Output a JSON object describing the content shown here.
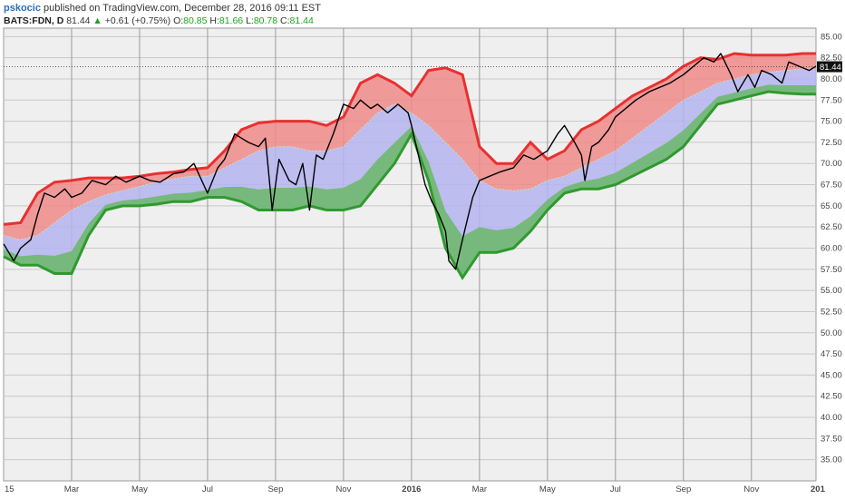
{
  "header": {
    "author": "pskocic",
    "published": "published on TradingView.com, December 28, 2016 09:11 EST",
    "symbol": "BATS:FDN, D",
    "last": "81.44",
    "change": "+0.61 (+0.75%)",
    "o_label": "O:",
    "o_val": "80.85",
    "h_label": "H:",
    "h_val": "81.66",
    "l_label": "L:",
    "l_val": "80.78",
    "c_label": "C:",
    "c_val": "81.44"
  },
  "price_tag": "81.44",
  "colors": {
    "upper_band": "#e83030",
    "upper_fill": "#f08a8a",
    "mid_fill": "#b4b4f0",
    "lower_fill": "#6fb86f",
    "lower_band": "#2e9a2e",
    "price": "#000000",
    "background": "#efefef",
    "grid": "#c8c8c8",
    "up_arrow": "#1aa51a"
  },
  "chart_data": {
    "type": "line",
    "title": "",
    "xlabel": "",
    "ylabel": "",
    "ylim": [
      32.5,
      86.0
    ],
    "y_ticks": [
      "85.00",
      "82.50",
      "80.00",
      "77.50",
      "75.00",
      "72.50",
      "70.00",
      "67.50",
      "65.00",
      "62.50",
      "60.00",
      "57.50",
      "55.00",
      "52.50",
      "50.00",
      "47.50",
      "45.00",
      "42.50",
      "40.00",
      "37.50",
      "35.00"
    ],
    "x_ticks": [
      "15",
      "Mar",
      "May",
      "Jul",
      "Sep",
      "Nov",
      "2016",
      "Mar",
      "May",
      "Jul",
      "Sep",
      "Nov",
      "201"
    ],
    "x_tick_months": [
      0,
      2,
      4,
      6,
      8,
      10,
      12,
      14,
      16,
      18,
      20,
      22,
      24
    ],
    "x_range_months": [
      0,
      23.9
    ],
    "grid": true,
    "series": [
      {
        "role": "price",
        "x_months": [
          0,
          0.3,
          0.5,
          0.8,
          1.0,
          1.2,
          1.5,
          1.8,
          2.0,
          2.3,
          2.6,
          3.0,
          3.3,
          3.6,
          4.0,
          4.3,
          4.6,
          5.0,
          5.3,
          5.6,
          6.0,
          6.3,
          6.5,
          6.8,
          7.0,
          7.2,
          7.5,
          7.7,
          7.9,
          8.1,
          8.4,
          8.6,
          8.8,
          9.0,
          9.2,
          9.4,
          9.7,
          10.0,
          10.3,
          10.5,
          10.8,
          11.0,
          11.3,
          11.6,
          11.9,
          12.0,
          12.2,
          12.4,
          12.6,
          12.8,
          13.0,
          13.1,
          13.3,
          13.5,
          13.8,
          14.0,
          14.3,
          14.6,
          15.0,
          15.3,
          15.6,
          16.0,
          16.3,
          16.5,
          16.8,
          17.0,
          17.1,
          17.3,
          17.5,
          17.8,
          18.0,
          18.3,
          18.6,
          19.0,
          19.3,
          19.6,
          20.0,
          20.3,
          20.6,
          20.9,
          21.1,
          21.4,
          21.6,
          21.9,
          22.1,
          22.3,
          22.6,
          22.9,
          23.1,
          23.4,
          23.7,
          23.9
        ],
        "values": [
          60.5,
          58.5,
          60.0,
          61.0,
          64.0,
          66.5,
          66.0,
          67.0,
          66.0,
          66.5,
          68.0,
          67.5,
          68.5,
          67.8,
          68.5,
          68.0,
          67.8,
          68.8,
          69.0,
          70.0,
          66.5,
          69.5,
          70.5,
          73.5,
          73.0,
          72.5,
          72.0,
          73.0,
          64.5,
          70.5,
          68.0,
          67.5,
          70.0,
          64.5,
          71.0,
          70.5,
          73.5,
          77.0,
          76.5,
          77.5,
          76.5,
          77.0,
          76.0,
          77.0,
          76.0,
          74.5,
          71.0,
          67.5,
          65.5,
          64.0,
          62.0,
          58.5,
          57.5,
          61.0,
          66.0,
          68.0,
          68.5,
          69.0,
          69.5,
          71.0,
          70.5,
          71.5,
          73.5,
          74.5,
          72.5,
          71.0,
          68.0,
          72.0,
          72.5,
          74.0,
          75.5,
          76.5,
          77.5,
          78.5,
          79.0,
          79.5,
          80.5,
          81.5,
          82.5,
          82.0,
          83.0,
          80.5,
          78.5,
          80.5,
          79.0,
          81.0,
          80.5,
          79.5,
          82.0,
          81.5,
          81.0,
          81.5
        ]
      },
      {
        "role": "upper_band",
        "x_months": [
          0,
          0.5,
          1.0,
          1.5,
          2.0,
          2.5,
          3.0,
          3.5,
          4.0,
          4.5,
          5.0,
          5.5,
          6.0,
          6.5,
          7.0,
          7.5,
          8.0,
          8.5,
          9.0,
          9.5,
          10.0,
          10.5,
          11.0,
          11.5,
          12.0,
          12.5,
          13.0,
          13.5,
          14.0,
          14.5,
          15.0,
          15.5,
          16.0,
          16.5,
          17.0,
          17.5,
          18.0,
          18.5,
          19.0,
          19.5,
          20.0,
          20.5,
          21.0,
          21.5,
          22.0,
          22.5,
          23.0,
          23.5,
          23.9
        ],
        "values": [
          62.8,
          63.0,
          66.5,
          67.8,
          68.0,
          68.3,
          68.3,
          68.3,
          68.5,
          68.8,
          69.0,
          69.3,
          69.5,
          71.5,
          74.0,
          74.8,
          75.0,
          75.0,
          75.0,
          74.5,
          75.5,
          79.5,
          80.5,
          79.5,
          78.0,
          81.0,
          81.3,
          80.5,
          72.0,
          70.0,
          70.0,
          72.5,
          70.5,
          71.5,
          74.0,
          75.0,
          76.5,
          78.0,
          79.0,
          80.0,
          81.5,
          82.5,
          82.3,
          83.0,
          82.8,
          82.8,
          82.8,
          83.0,
          83.0
        ]
      },
      {
        "role": "mid_band",
        "x_months": [
          0,
          0.5,
          1.0,
          1.5,
          2.0,
          2.5,
          3.0,
          3.5,
          4.0,
          4.5,
          5.0,
          5.5,
          6.0,
          6.5,
          7.0,
          7.5,
          8.0,
          8.5,
          9.0,
          9.5,
          10.0,
          10.5,
          11.0,
          11.5,
          12.0,
          12.5,
          13.0,
          13.5,
          14.0,
          14.5,
          15.0,
          15.5,
          16.0,
          16.5,
          17.0,
          17.5,
          18.0,
          18.5,
          19.0,
          19.5,
          20.0,
          20.5,
          21.0,
          21.5,
          22.0,
          22.5,
          23.0,
          23.5,
          23.9
        ],
        "values": [
          61.5,
          61.0,
          61.5,
          63.0,
          64.5,
          65.5,
          66.3,
          66.8,
          67.3,
          67.8,
          68.2,
          68.5,
          68.5,
          69.5,
          70.5,
          71.5,
          72.0,
          72.0,
          71.5,
          71.5,
          72.0,
          74.0,
          76.0,
          77.0,
          76.0,
          74.5,
          72.5,
          70.5,
          68.0,
          67.0,
          66.8,
          67.0,
          68.0,
          68.5,
          69.5,
          70.5,
          71.5,
          73.0,
          74.5,
          76.0,
          77.5,
          78.5,
          79.5,
          80.0,
          80.5,
          80.8,
          81.0,
          81.2,
          81.2
        ]
      },
      {
        "role": "lower_band",
        "x_months": [
          0,
          0.5,
          1.0,
          1.5,
          2.0,
          2.5,
          3.0,
          3.5,
          4.0,
          4.5,
          5.0,
          5.5,
          6.0,
          6.5,
          7.0,
          7.5,
          8.0,
          8.5,
          9.0,
          9.5,
          10.0,
          10.5,
          11.0,
          11.5,
          12.0,
          12.5,
          13.0,
          13.5,
          14.0,
          14.5,
          15.0,
          15.5,
          16.0,
          16.5,
          17.0,
          17.5,
          18.0,
          18.5,
          19.0,
          19.5,
          20.0,
          20.5,
          21.0,
          21.5,
          22.0,
          22.5,
          23.0,
          23.5,
          23.9
        ],
        "values": [
          59.0,
          58.0,
          58.0,
          57.0,
          57.0,
          61.5,
          64.5,
          65.0,
          65.0,
          65.2,
          65.5,
          65.5,
          66.0,
          66.0,
          65.5,
          64.5,
          64.5,
          64.5,
          65.0,
          64.5,
          64.5,
          65.0,
          67.5,
          70.0,
          73.5,
          68.0,
          60.0,
          56.5,
          59.5,
          59.5,
          60.0,
          62.0,
          64.5,
          66.5,
          67.0,
          67.0,
          67.5,
          68.5,
          69.5,
          70.5,
          72.0,
          74.5,
          77.0,
          77.5,
          78.0,
          78.5,
          78.3,
          78.2,
          78.2
        ]
      }
    ]
  }
}
